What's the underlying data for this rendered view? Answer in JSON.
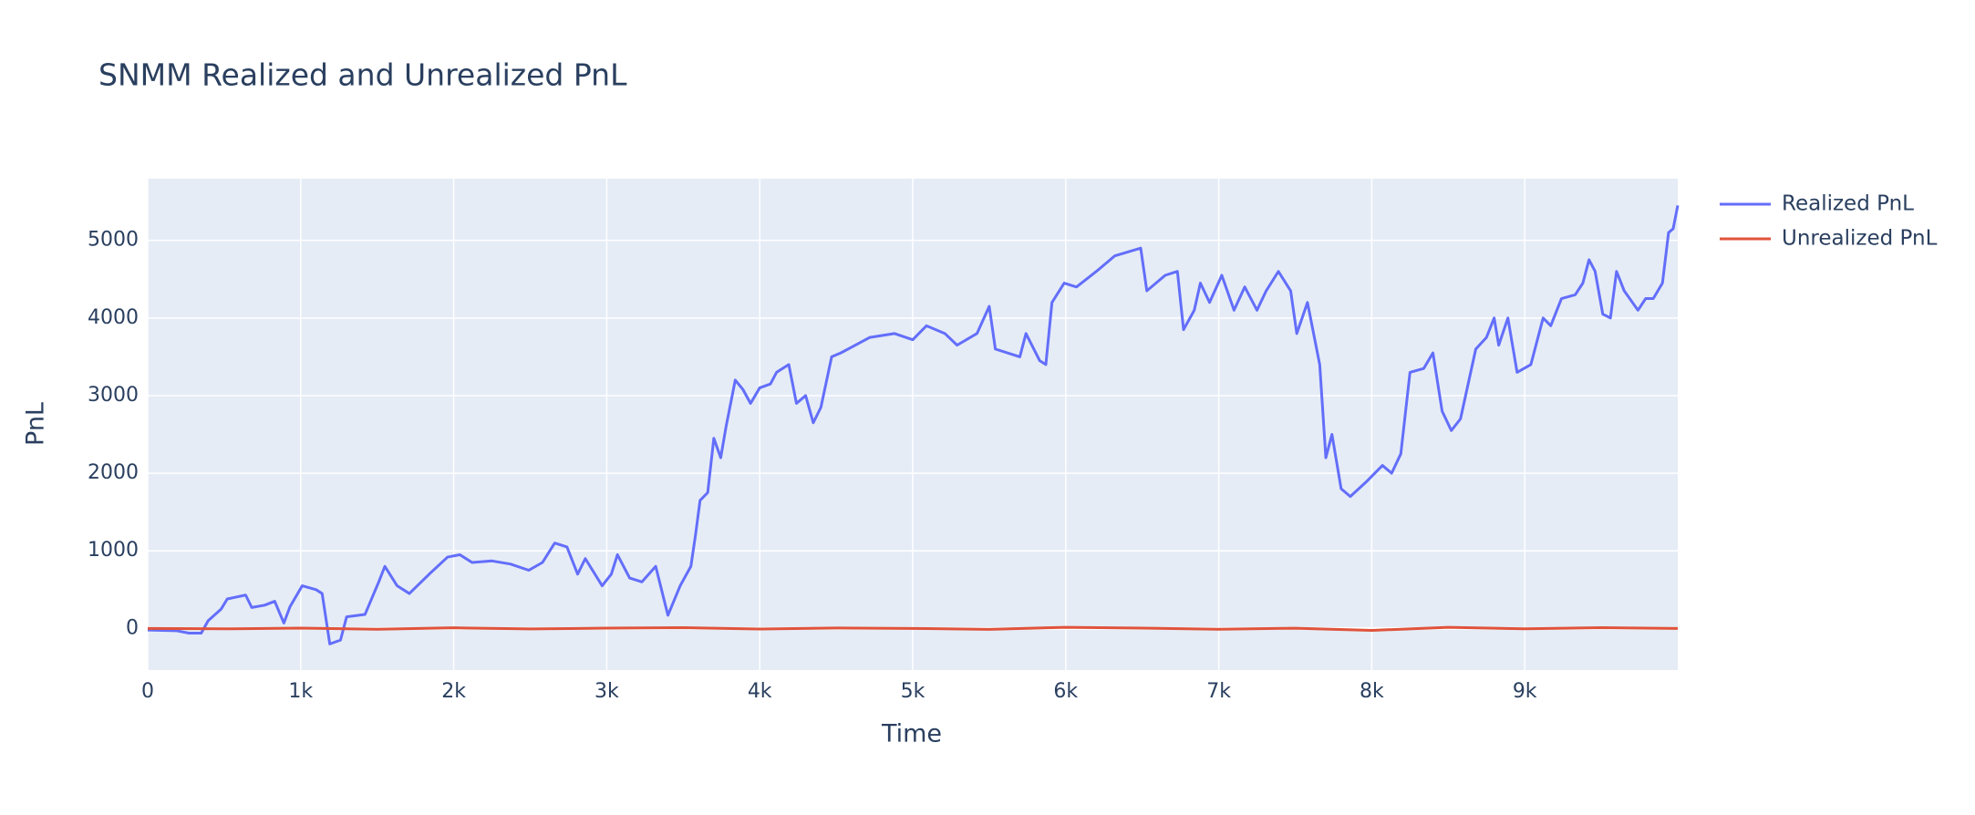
{
  "chart_data": {
    "type": "line",
    "title": "SNMM Realized and Unrealized PnL",
    "x_label": "Time",
    "y_label": "PnL",
    "xlim": [
      0,
      10000
    ],
    "ylim": [
      -536,
      5795
    ],
    "xticks": [
      0,
      {
        "value": 1000,
        "label": "1k"
      },
      {
        "value": 2000,
        "label": "2k"
      },
      {
        "value": 3000,
        "label": "3k"
      },
      {
        "value": 4000,
        "label": "4k"
      },
      {
        "value": 5000,
        "label": "5k"
      },
      {
        "value": 6000,
        "label": "6k"
      },
      {
        "value": 7000,
        "label": "7k"
      },
      {
        "value": 8000,
        "label": "8k"
      },
      {
        "value": 9000,
        "label": "9k"
      }
    ],
    "yticks": [
      0,
      1000,
      2000,
      3000,
      4000,
      5000
    ],
    "grid": true,
    "legend": "right",
    "series": [
      {
        "name": "Realized PnL",
        "color": "#636efa",
        "x": [
          0,
          190,
          270,
          350,
          395,
          480,
          520,
          640,
          680,
          765,
          830,
          890,
          930,
          1010,
          1100,
          1140,
          1190,
          1260,
          1300,
          1420,
          1510,
          1550,
          1630,
          1710,
          1840,
          1960,
          2040,
          2120,
          2250,
          2370,
          2490,
          2580,
          2660,
          2740,
          2810,
          2860,
          2970,
          3030,
          3070,
          3150,
          3230,
          3320,
          3400,
          3480,
          3550,
          3580,
          3610,
          3660,
          3700,
          3745,
          3780,
          3840,
          3890,
          3940,
          4000,
          4070,
          4110,
          4190,
          4240,
          4300,
          4350,
          4400,
          4470,
          4530,
          4720,
          4880,
          5000,
          5090,
          5210,
          5290,
          5420,
          5500,
          5540,
          5700,
          5740,
          5830,
          5870,
          5910,
          5990,
          6070,
          6200,
          6320,
          6490,
          6530,
          6650,
          6730,
          6770,
          6840,
          6880,
          6940,
          7020,
          7100,
          7170,
          7250,
          7310,
          7390,
          7470,
          7510,
          7580,
          7660,
          7700,
          7740,
          7800,
          7860,
          7970,
          8070,
          8130,
          8190,
          8250,
          8340,
          8400,
          8460,
          8520,
          8580,
          8680,
          8750,
          8800,
          8830,
          8890,
          8950,
          9040,
          9120,
          9170,
          9240,
          9330,
          9380,
          9420,
          9460,
          9510,
          9560,
          9600,
          9650,
          9740,
          9790,
          9840,
          9900,
          9940,
          9970,
          10000
        ],
        "values": [
          -20,
          -30,
          -60,
          -60,
          100,
          250,
          380,
          430,
          270,
          300,
          350,
          70,
          280,
          550,
          500,
          450,
          -200,
          -150,
          150,
          180,
          600,
          800,
          550,
          450,
          700,
          920,
          950,
          850,
          870,
          830,
          750,
          850,
          1100,
          1050,
          700,
          900,
          550,
          700,
          950,
          650,
          600,
          800,
          170,
          550,
          800,
          1200,
          1650,
          1750,
          2450,
          2200,
          2600,
          3200,
          3080,
          2900,
          3100,
          3150,
          3300,
          3400,
          2900,
          3000,
          2650,
          2850,
          3500,
          3550,
          3750,
          3800,
          3720,
          3900,
          3800,
          3650,
          3800,
          4150,
          3600,
          3500,
          3800,
          3450,
          3400,
          4200,
          4450,
          4400,
          4600,
          4800,
          4900,
          4350,
          4550,
          4600,
          3850,
          4100,
          4450,
          4200,
          4550,
          4100,
          4400,
          4100,
          4350,
          4600,
          4350,
          3800,
          4200,
          3400,
          2200,
          2500,
          1800,
          1700,
          1900,
          2100,
          2000,
          2250,
          3300,
          3350,
          3550,
          2800,
          2550,
          2700,
          3600,
          3750,
          4000,
          3650,
          4000,
          3300,
          3400,
          4000,
          3900,
          4250,
          4300,
          4450,
          4750,
          4600,
          4050,
          4000,
          4600,
          4350,
          4100,
          4250,
          4250,
          4450,
          5100,
          5150,
          5450
        ]
      },
      {
        "name": "Unrealized PnL",
        "color": "#e0533b",
        "x": [
          0,
          500,
          1000,
          1500,
          2000,
          2500,
          3000,
          3500,
          4000,
          4500,
          5000,
          5500,
          6000,
          6500,
          7000,
          7500,
          8000,
          8500,
          9000,
          9500,
          10000
        ],
        "values": [
          0,
          -5,
          5,
          -10,
          8,
          -6,
          4,
          10,
          -8,
          6,
          0,
          -12,
          15,
          5,
          -10,
          3,
          -25,
          15,
          -5,
          10,
          0
        ]
      }
    ]
  }
}
